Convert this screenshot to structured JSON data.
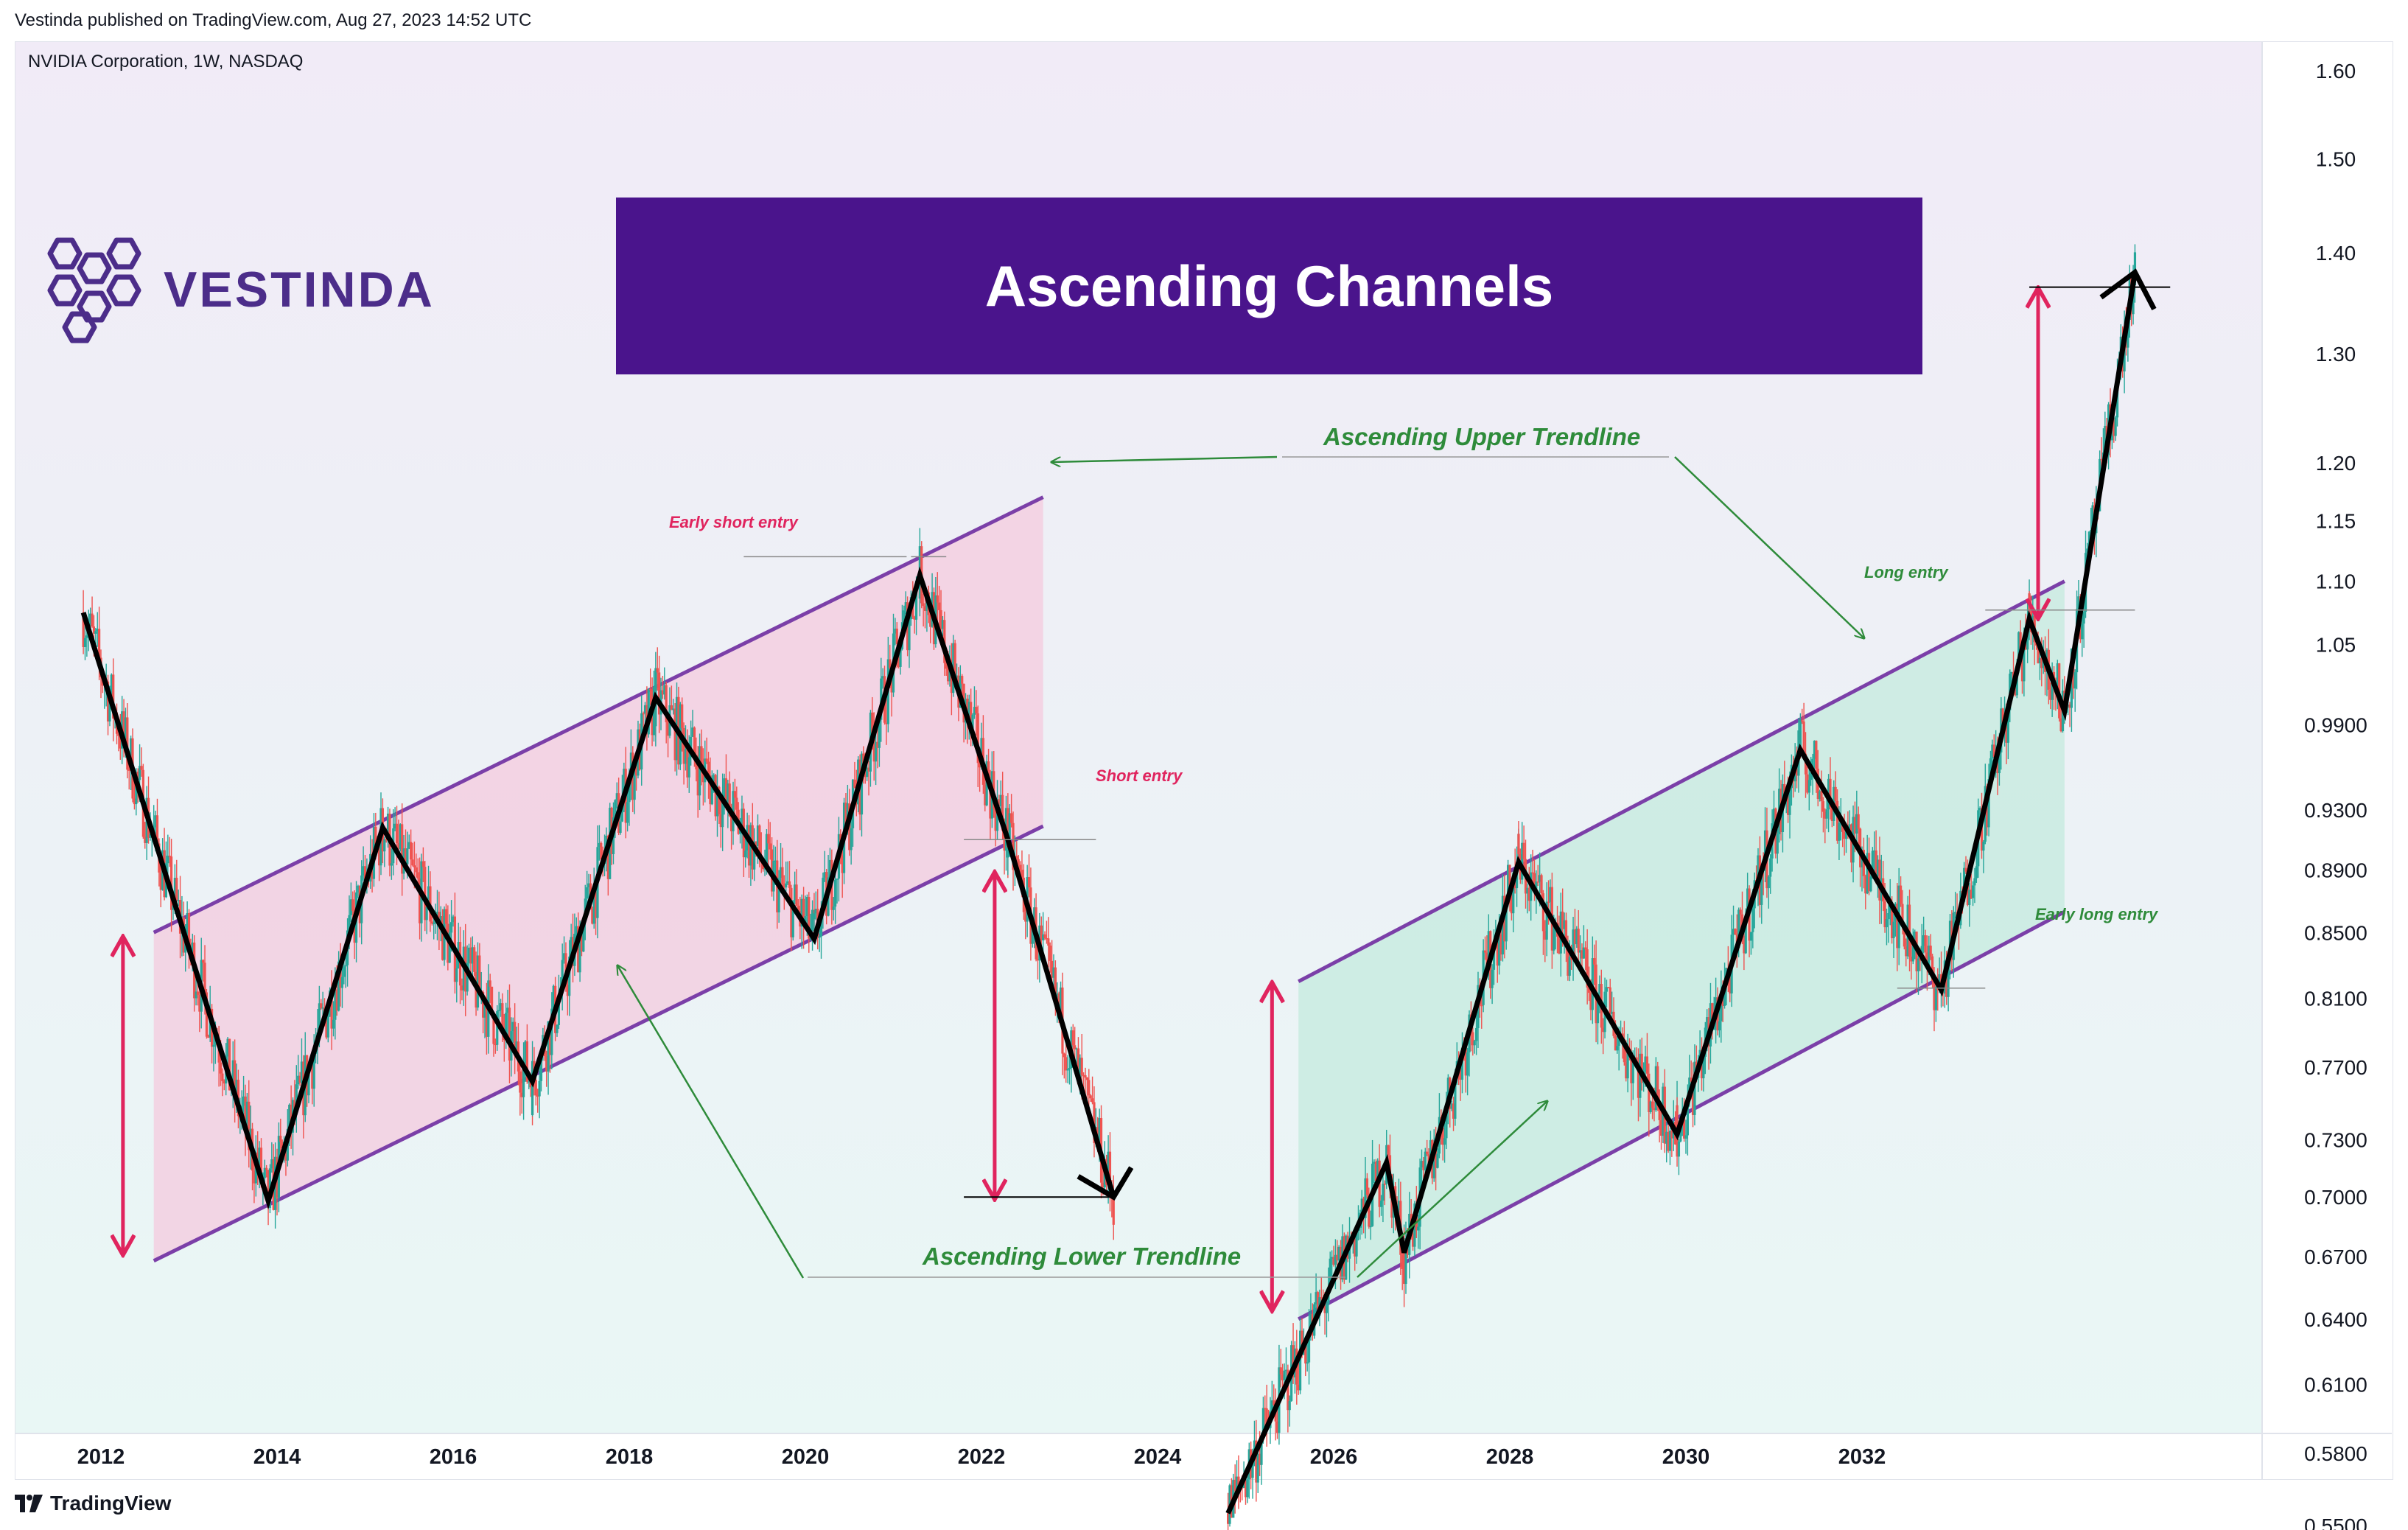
{
  "header": {
    "published": "Vestinda published on TradingView.com, Aug 27, 2023 14:52 UTC"
  },
  "symbol": "NVIDIA Corporation, 1W, NASDAQ",
  "logo": {
    "text": "VESTINDA",
    "icon": "hexagon-cluster-logo-icon",
    "color": "#4c2d8a"
  },
  "banner": {
    "title": "Ascending Channels",
    "color": "#4a148c"
  },
  "footer": {
    "brand": "TradingView",
    "icon": "tradingview-logo-icon"
  },
  "annotations": {
    "upper": "Ascending Upper Trendline",
    "lower": "Ascending Lower Trendline",
    "early_short": "Early short entry",
    "short": "Short entry",
    "long": "Long entry",
    "early_long": "Early long entry"
  },
  "colors": {
    "bear_channel_fill": "#f3cfe0",
    "bull_channel_fill": "#c9ebe0",
    "channel_line": "#7b3fa8",
    "range_arrow": "#e0245e",
    "zigzag": "#000000",
    "candle_up": "#26a69a",
    "candle_down": "#ef5350",
    "annotation_arrow": "#2e8b3a"
  },
  "chart_data": {
    "type": "candlestick",
    "x_axis": {
      "ticks": [
        "2012",
        "2014",
        "2016",
        "2018",
        "2020",
        "2022",
        "2024",
        "2026",
        "2028",
        "2030",
        "2032"
      ]
    },
    "y_axis": {
      "scale": "log",
      "ticks": [
        "1.60",
        "1.50",
        "1.40",
        "1.30",
        "1.20",
        "1.15",
        "1.10",
        "1.05",
        "0.9900",
        "0.9300",
        "0.8900",
        "0.8500",
        "0.8100",
        "0.7700",
        "0.7300",
        "0.7000",
        "0.6700",
        "0.6400",
        "0.6100",
        "0.5800",
        "0.5500"
      ]
    },
    "patterns": [
      {
        "name": "Descending move in ascending channel",
        "channel_start": 2012.6,
        "channel_end": 2022.7,
        "lower_start": 0.668,
        "lower_end": 0.919,
        "upper_start": 0.85,
        "upper_end": 1.17
      },
      {
        "name": "Ascending move in ascending channel",
        "channel_start": 2025.6,
        "channel_end": 2034.3,
        "lower_start": 0.64,
        "lower_end": 0.863,
        "upper_start": 0.82,
        "upper_end": 1.1
      }
    ],
    "zigzag_1": [
      [
        2011.8,
        1.075
      ],
      [
        2013.9,
        0.698
      ],
      [
        2015.2,
        0.918
      ],
      [
        2016.9,
        0.762
      ],
      [
        2018.3,
        1.01
      ],
      [
        2020.1,
        0.846
      ],
      [
        2021.3,
        1.105
      ],
      [
        2022.3,
        0.91
      ],
      [
        2023.5,
        0.7
      ]
    ],
    "zigzag_2": [
      [
        2024.8,
        0.555
      ],
      [
        2026.6,
        0.718
      ],
      [
        2026.8,
        0.672
      ],
      [
        2028.1,
        0.895
      ],
      [
        2029.9,
        0.733
      ],
      [
        2031.3,
        0.972
      ],
      [
        2032.9,
        0.815
      ],
      [
        2033.9,
        1.07
      ],
      [
        2034.3,
        1.0
      ],
      [
        2035.1,
        1.38
      ]
    ]
  }
}
